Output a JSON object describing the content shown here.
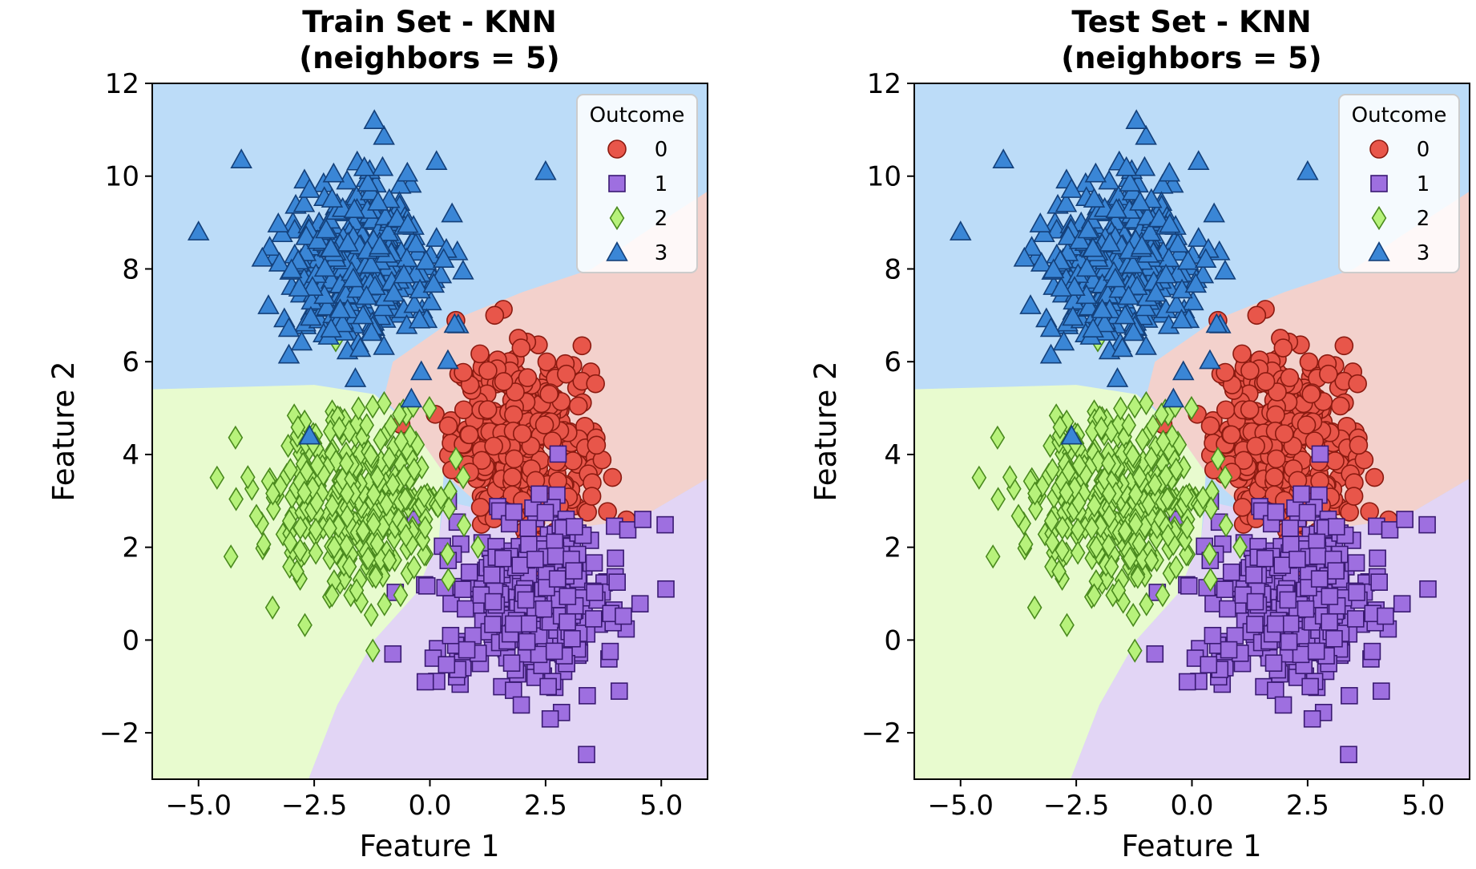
{
  "chart_data": [
    {
      "type": "scatter",
      "title_line1": "Train Set - KNN",
      "title_line2": "(neighbors = 5)",
      "xlabel": "Feature 1",
      "ylabel": "Feature 2",
      "xlim": [
        -6.0,
        6.0
      ],
      "ylim": [
        -3.0,
        12.0
      ],
      "x_ticks": [
        "−5.0",
        "−2.5",
        "0.0",
        "2.5",
        "5.0"
      ],
      "x_tick_values": [
        -5.0,
        -2.5,
        0.0,
        2.5,
        5.0
      ],
      "y_ticks": [
        "−2",
        "0",
        "2",
        "4",
        "6",
        "8",
        "10",
        "12"
      ],
      "y_tick_values": [
        -2,
        0,
        2,
        4,
        6,
        8,
        10,
        12
      ],
      "grid": false,
      "legend": {
        "title": "Outcome",
        "placement": "top-right"
      },
      "series": [
        {
          "name": "0",
          "marker": "circle",
          "color": "#e8564a",
          "edge": "#8b1a10",
          "center": [
            2.0,
            4.3
          ],
          "spread": [
            0.75,
            0.95
          ],
          "count": 340,
          "outliers": [
            [
              1.4,
              7.0
            ],
            [
              3.6,
              4.2
            ],
            [
              3.5,
              3.1
            ],
            [
              2.8,
              2.9
            ]
          ]
        },
        {
          "name": "1",
          "marker": "square",
          "color": "#9e6fe0",
          "edge": "#3a1a72",
          "center": [
            2.2,
            0.9
          ],
          "spread": [
            0.95,
            0.95
          ],
          "count": 340,
          "outliers": [
            [
              5.1,
              1.1
            ],
            [
              4.6,
              2.6
            ],
            [
              -0.8,
              -0.3
            ],
            [
              -0.1,
              -0.9
            ],
            [
              2.6,
              -1.7
            ],
            [
              3.4,
              -1.2
            ]
          ]
        },
        {
          "name": "2",
          "marker": "diamond",
          "color": "#b7f27b",
          "edge": "#4a8a1e",
          "center": [
            -1.5,
            3.0
          ],
          "spread": [
            1.0,
            1.0
          ],
          "count": 340,
          "outliers": [
            [
              -4.6,
              3.5
            ],
            [
              -4.3,
              1.8
            ],
            [
              -3.4,
              0.7
            ],
            [
              0.4,
              1.3
            ]
          ]
        },
        {
          "name": "3",
          "marker": "triangle",
          "color": "#3a86d6",
          "edge": "#14407a",
          "center": [
            -1.5,
            8.2
          ],
          "spread": [
            0.9,
            1.0
          ],
          "count": 340,
          "outliers": [
            [
              -5.0,
              8.8
            ],
            [
              -1.2,
              11.2
            ],
            [
              2.5,
              10.1
            ],
            [
              -2.6,
              4.4
            ],
            [
              -0.4,
              5.2
            ]
          ]
        }
      ],
      "regions": {
        "colors": {
          "0": "#f3d1cc",
          "1": "#e2d5f5",
          "2": "#e8fbcf",
          "3": "#bcdcf8"
        }
      }
    },
    {
      "type": "scatter",
      "title_line1": "Test Set - KNN",
      "title_line2": "(neighbors = 5)",
      "xlabel": "Feature 1",
      "ylabel": "Feature 2",
      "xlim": [
        -6.0,
        6.0
      ],
      "ylim": [
        -3.0,
        12.0
      ],
      "x_ticks": [
        "−5.0",
        "−2.5",
        "0.0",
        "2.5",
        "5.0"
      ],
      "x_tick_values": [
        -5.0,
        -2.5,
        0.0,
        2.5,
        5.0
      ],
      "y_ticks": [
        "−2",
        "0",
        "2",
        "4",
        "6",
        "8",
        "10",
        "12"
      ],
      "y_tick_values": [
        -2,
        0,
        2,
        4,
        6,
        8,
        10,
        12
      ],
      "grid": false,
      "legend": {
        "title": "Outcome",
        "placement": "top-right"
      },
      "series": [
        {
          "name": "0",
          "marker": "circle",
          "color": "#e8564a",
          "edge": "#8b1a10",
          "center": [
            2.0,
            4.3
          ],
          "spread": [
            0.75,
            0.95
          ],
          "count": 340,
          "outliers": [
            [
              1.4,
              7.0
            ],
            [
              3.6,
              4.2
            ],
            [
              3.5,
              3.1
            ],
            [
              2.8,
              2.9
            ]
          ]
        },
        {
          "name": "1",
          "marker": "square",
          "color": "#9e6fe0",
          "edge": "#3a1a72",
          "center": [
            2.2,
            0.9
          ],
          "spread": [
            0.95,
            0.95
          ],
          "count": 340,
          "outliers": [
            [
              5.1,
              1.1
            ],
            [
              4.6,
              2.6
            ],
            [
              -0.8,
              -0.3
            ],
            [
              -0.1,
              -0.9
            ],
            [
              2.6,
              -1.7
            ],
            [
              3.4,
              -1.2
            ]
          ]
        },
        {
          "name": "2",
          "marker": "diamond",
          "color": "#b7f27b",
          "edge": "#4a8a1e",
          "center": [
            -1.5,
            3.0
          ],
          "spread": [
            1.0,
            1.0
          ],
          "count": 340,
          "outliers": [
            [
              -4.6,
              3.5
            ],
            [
              -4.3,
              1.8
            ],
            [
              -3.4,
              0.7
            ],
            [
              0.4,
              1.3
            ]
          ]
        },
        {
          "name": "3",
          "marker": "triangle",
          "color": "#3a86d6",
          "edge": "#14407a",
          "center": [
            -1.5,
            8.2
          ],
          "spread": [
            0.9,
            1.0
          ],
          "count": 340,
          "outliers": [
            [
              -5.0,
              8.8
            ],
            [
              -1.2,
              11.2
            ],
            [
              2.5,
              10.1
            ],
            [
              -2.6,
              4.4
            ],
            [
              -0.4,
              5.2
            ]
          ]
        }
      ],
      "regions": {
        "colors": {
          "0": "#f3d1cc",
          "1": "#e2d5f5",
          "2": "#e8fbcf",
          "3": "#bcdcf8"
        }
      }
    }
  ]
}
